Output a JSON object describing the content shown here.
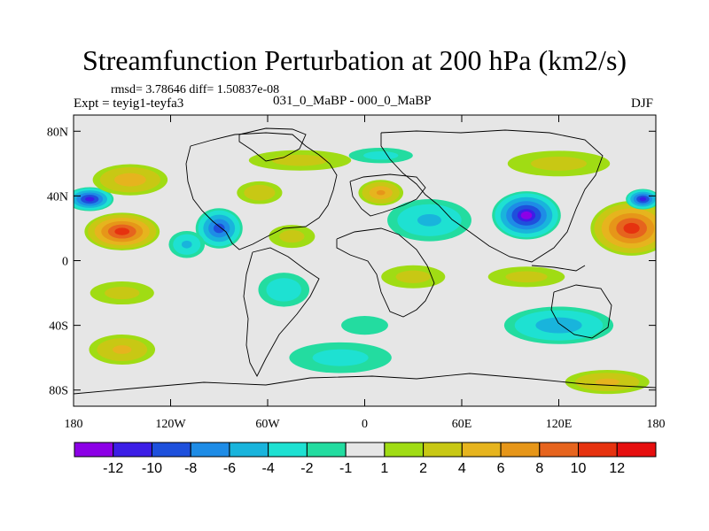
{
  "header": {
    "title": "Streamfunction Perturbation at 200 hPa (km2/s)",
    "stats": "rmsd= 3.78646 diff= 1.50837e-08",
    "expt": "Expt = teyig1-teyfa3",
    "case": "031_0_MaBP - 000_0_MaBP",
    "season": "DJF"
  },
  "chart_data": {
    "type": "heatmap",
    "title": "Streamfunction Perturbation at 200 hPa (km2/s)",
    "units": "km2/s",
    "projection": "cylindrical-equidistant",
    "x_ticks": [
      {
        "value": -180,
        "label": "180"
      },
      {
        "value": -120,
        "label": "120W"
      },
      {
        "value": -60,
        "label": "60W"
      },
      {
        "value": 0,
        "label": "0"
      },
      {
        "value": 60,
        "label": "60E"
      },
      {
        "value": 120,
        "label": "120E"
      },
      {
        "value": 180,
        "label": "180"
      }
    ],
    "y_ticks": [
      {
        "value": 80,
        "label": "80N"
      },
      {
        "value": 40,
        "label": "40N"
      },
      {
        "value": 0,
        "label": "0"
      },
      {
        "value": -40,
        "label": "40S"
      },
      {
        "value": -80,
        "label": "80S"
      }
    ],
    "xlim": [
      -180,
      180
    ],
    "ylim": [
      -90,
      90
    ],
    "colorbar": {
      "colors": [
        "#8c00e6",
        "#3c1ee6",
        "#1e50dc",
        "#1e8ce6",
        "#19b4dc",
        "#1ee1d2",
        "#23dca0",
        "#e6e6e6",
        "#a0dc14",
        "#c8c814",
        "#e6b41e",
        "#e69619",
        "#e6641e",
        "#e6320f",
        "#e60f0f"
      ],
      "labels": [
        "-12",
        "-10",
        "-8",
        "-6",
        "-4",
        "-2",
        "-1",
        "1",
        "2",
        "4",
        "6",
        "8",
        "10",
        "12"
      ]
    },
    "anomalies": [
      {
        "lon": -170,
        "lat": 38,
        "value": -11,
        "rx": 14,
        "ry": 7
      },
      {
        "lon": -150,
        "lat": 18,
        "value": 11,
        "rx": 22,
        "ry": 11
      },
      {
        "lon": -145,
        "lat": 50,
        "value": 5,
        "rx": 24,
        "ry": 10
      },
      {
        "lon": -90,
        "lat": 20,
        "value": -9,
        "rx": 14,
        "ry": 12
      },
      {
        "lon": -110,
        "lat": 10,
        "value": -4,
        "rx": 12,
        "ry": 9
      },
      {
        "lon": -65,
        "lat": 42,
        "value": 3,
        "rx": 16,
        "ry": 8
      },
      {
        "lon": -45,
        "lat": 15,
        "value": 2,
        "rx": 18,
        "ry": 9
      },
      {
        "lon": -40,
        "lat": 62,
        "value": 2,
        "rx": 40,
        "ry": 8
      },
      {
        "lon": -50,
        "lat": -18,
        "value": -3,
        "rx": 18,
        "ry": 12
      },
      {
        "lon": 10,
        "lat": 42,
        "value": 6,
        "rx": 14,
        "ry": 8
      },
      {
        "lon": 40,
        "lat": 25,
        "value": -4,
        "rx": 28,
        "ry": 14
      },
      {
        "lon": 100,
        "lat": 28,
        "value": -12,
        "rx": 20,
        "ry": 14
      },
      {
        "lon": 165,
        "lat": 20,
        "value": 11,
        "rx": 24,
        "ry": 16
      },
      {
        "lon": 172,
        "lat": 38,
        "value": -11,
        "rx": 10,
        "ry": 6
      },
      {
        "lon": 120,
        "lat": 60,
        "value": 2,
        "rx": 40,
        "ry": 10
      },
      {
        "lon": 10,
        "lat": 65,
        "value": -2,
        "rx": 25,
        "ry": 6
      },
      {
        "lon": -150,
        "lat": -20,
        "value": 2,
        "rx": 25,
        "ry": 9
      },
      {
        "lon": -150,
        "lat": -55,
        "value": 4,
        "rx": 22,
        "ry": 10
      },
      {
        "lon": -15,
        "lat": -60,
        "value": -2,
        "rx": 40,
        "ry": 12
      },
      {
        "lon": 30,
        "lat": -10,
        "value": 2,
        "rx": 25,
        "ry": 9
      },
      {
        "lon": 120,
        "lat": -40,
        "value": -5,
        "rx": 35,
        "ry": 12
      },
      {
        "lon": 100,
        "lat": -10,
        "value": 2,
        "rx": 30,
        "ry": 8
      },
      {
        "lon": 150,
        "lat": -75,
        "value": 4,
        "rx": 28,
        "ry": 8
      },
      {
        "lon": 0,
        "lat": -40,
        "value": -1.5,
        "rx": 20,
        "ry": 8
      }
    ]
  }
}
